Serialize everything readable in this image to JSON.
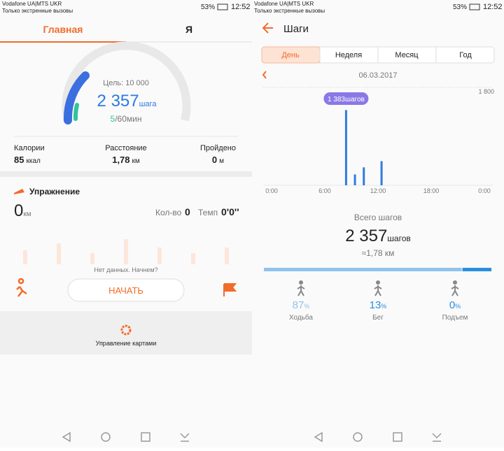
{
  "left": {
    "status": {
      "carrier": "Vodafone UA|MTS UKR",
      "note": "Только экстренные вызовы",
      "battery": "53%",
      "time": "12:52"
    },
    "tabs": [
      "Главная",
      "Я"
    ],
    "goal": "Цель: 10 000",
    "steps": "2 357",
    "steps_unit": "шага",
    "minutes": "5",
    "minutes_goal": "/60мин",
    "stats": [
      {
        "label": "Калории",
        "value": "85",
        "unit": "ккал"
      },
      {
        "label": "Расстояние",
        "value": "1,78",
        "unit": "км"
      },
      {
        "label": "Пройдено",
        "value": "0",
        "unit": "м"
      }
    ],
    "exercise": {
      "title": "Упражнение",
      "distance": "0",
      "distance_unit": "км",
      "count_label": "Кол-во",
      "count": "0",
      "pace_label": "Темп",
      "pace": "0'0''",
      "empty": "Нет данных. Начнем?",
      "start": "НАЧАТЬ"
    },
    "cards": "Управление картами"
  },
  "right": {
    "status": {
      "carrier": "Vodafone UA|MTS UKR",
      "note": "Только экстренные вызовы",
      "battery": "53%",
      "time": "12:52"
    },
    "title": "Шаги",
    "periods": [
      "День",
      "Неделя",
      "Месяц",
      "Год"
    ],
    "date": "06.03.2017",
    "steps_chart": {
      "type": "bar",
      "x": [
        8,
        9,
        10,
        12
      ],
      "values": [
        1383,
        200,
        330,
        444
      ],
      "color": "#2f7ce0",
      "xlim": [
        0,
        24
      ],
      "xticks": [
        {
          "value": 0,
          "label": "0:00"
        },
        {
          "value": 6,
          "label": "6:00"
        },
        {
          "value": 12,
          "label": "12:00"
        },
        {
          "value": 18,
          "label": "18:00"
        },
        {
          "value": 24,
          "label": "0:00"
        }
      ],
      "ylim": [
        0,
        1800
      ],
      "yticks": [
        {
          "value": 1800,
          "label": "1 800"
        }
      ],
      "tooltip": "1 383шагов"
    },
    "total_label": "Всего шагов",
    "total": "2 357",
    "total_unit": "шагов",
    "distance": "≈1,78 км",
    "percent_sign": "%",
    "activities": [
      {
        "label": "Ходьба",
        "value": 87,
        "color": "#8fc3ee"
      },
      {
        "label": "Бег",
        "value": 13,
        "color": "#2a8de0"
      },
      {
        "label": "Подъем",
        "value": 0,
        "color": "#2a8de0"
      }
    ]
  }
}
